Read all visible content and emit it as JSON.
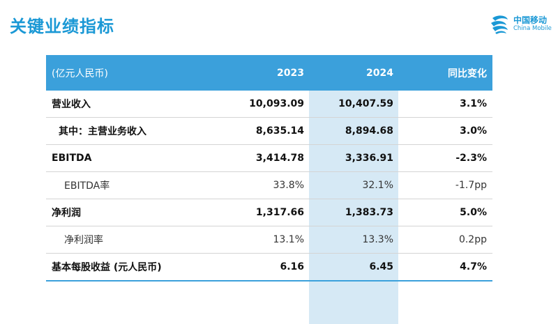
{
  "title": "关键业绩指标",
  "logo": {
    "cn": "中国移动",
    "en": "China Mobile"
  },
  "table": {
    "headers": [
      "(亿元人民币)",
      "2023",
      "2024",
      "同比变化"
    ],
    "rows": [
      {
        "label": "营业收入",
        "v2023": "10,093.09",
        "v2024": "10,407.59",
        "change": "3.1%"
      },
      {
        "label": "其中：主营业务收入",
        "v2023": "8,635.14",
        "v2024": "8,894.68",
        "change": "3.0%"
      },
      {
        "label": "EBITDA",
        "v2023": "3,414.78",
        "v2024": "3,336.91",
        "change": "-2.3%"
      },
      {
        "label": "EBITDA率",
        "v2023": "33.8%",
        "v2024": "32.1%",
        "change": "-1.7pp"
      },
      {
        "label": "净利润",
        "v2023": "1,317.66",
        "v2024": "1,383.73",
        "change": "5.0%"
      },
      {
        "label": "净利润率",
        "v2023": "13.1%",
        "v2024": "13.3%",
        "change": "0.2pp"
      },
      {
        "label": "基本每股收益 (元人民币)",
        "v2023": "6.16",
        "v2024": "6.45",
        "change": "4.7%"
      }
    ]
  }
}
